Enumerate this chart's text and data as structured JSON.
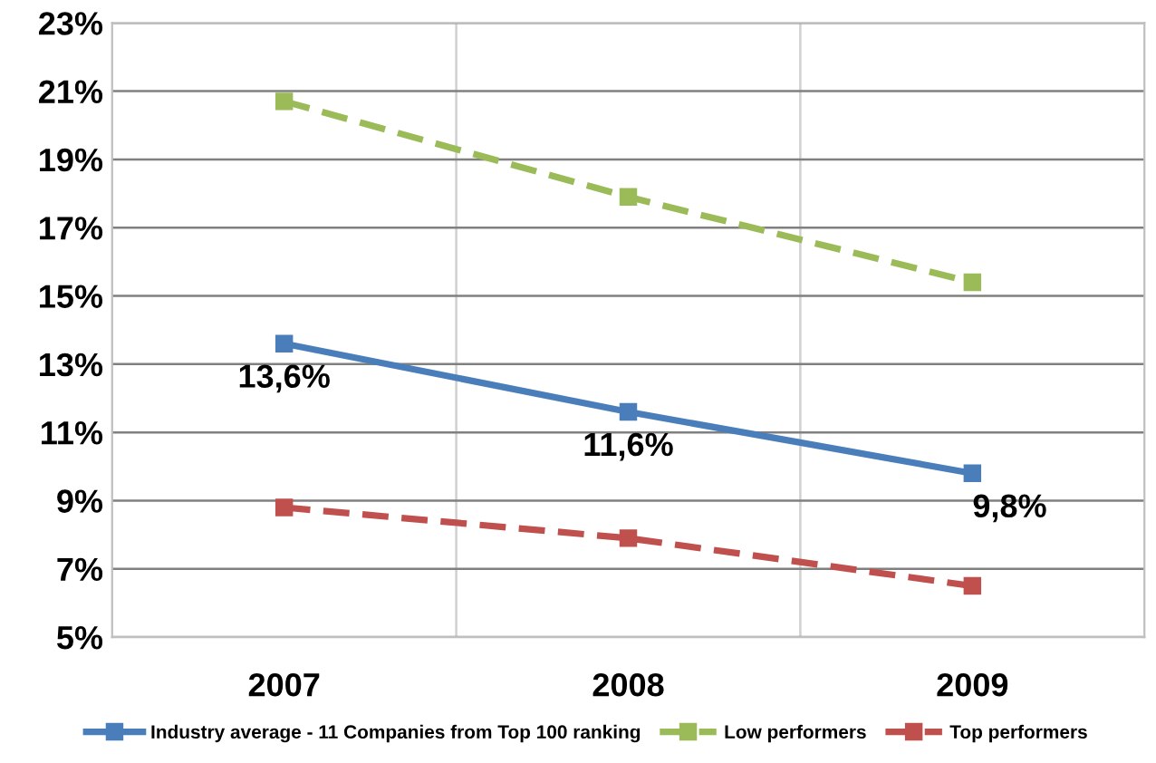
{
  "chart_data": {
    "type": "line",
    "categories": [
      "2007",
      "2008",
      "2009"
    ],
    "series": [
      {
        "name": "Industry average - 11 Companies from Top 100 ranking",
        "color": "#4a7ebb",
        "values": [
          13.6,
          11.6,
          9.8
        ],
        "line_style": "solid",
        "value_labels": [
          "13,6%",
          "11,6%",
          "9,8%"
        ]
      },
      {
        "name": "Low performers",
        "color": "#9bbb59",
        "values": [
          20.7,
          17.9,
          15.4
        ],
        "line_style": "dashed"
      },
      {
        "name": "Top performers",
        "color": "#c0504d",
        "values": [
          8.8,
          7.9,
          6.5
        ],
        "line_style": "dashed"
      }
    ],
    "ylim": [
      5,
      23
    ],
    "yticks": [
      {
        "value": 5,
        "label": "5%"
      },
      {
        "value": 7,
        "label": "7%"
      },
      {
        "value": 9,
        "label": "9%"
      },
      {
        "value": 11,
        "label": "11%"
      },
      {
        "value": 13,
        "label": "13%"
      },
      {
        "value": 15,
        "label": "15%"
      },
      {
        "value": 17,
        "label": "17%"
      },
      {
        "value": 19,
        "label": "19%"
      },
      {
        "value": 21,
        "label": "21%"
      },
      {
        "value": 23,
        "label": "23%"
      }
    ],
    "grid": true,
    "legend": "bottom",
    "marker": "square"
  }
}
